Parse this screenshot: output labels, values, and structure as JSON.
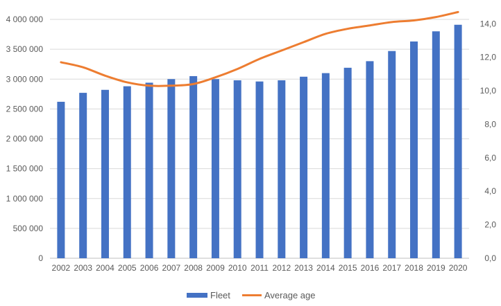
{
  "chart_data": {
    "type": "bar+line",
    "title": "",
    "categories": [
      "2002",
      "2003",
      "2004",
      "2005",
      "2006",
      "2007",
      "2008",
      "2009",
      "2010",
      "2011",
      "2012",
      "2013",
      "2014",
      "2015",
      "2016",
      "2017",
      "2018",
      "2019",
      "2020"
    ],
    "series": [
      {
        "name": "Fleet",
        "type": "bar",
        "axis": "left",
        "color": "#4472C4",
        "values": [
          2620000,
          2770000,
          2820000,
          2880000,
          2940000,
          3000000,
          3050000,
          3000000,
          2980000,
          2960000,
          2980000,
          3040000,
          3100000,
          3190000,
          3300000,
          3470000,
          3630000,
          3800000,
          3910000
        ]
      },
      {
        "name": "Average age",
        "type": "line",
        "axis": "right",
        "color": "#ED7D31",
        "values": [
          11.7,
          11.4,
          10.9,
          10.5,
          10.3,
          10.3,
          10.4,
          10.8,
          11.3,
          11.9,
          12.4,
          12.9,
          13.4,
          13.7,
          13.9,
          14.1,
          14.2,
          14.4,
          14.7
        ]
      }
    ],
    "left_axis": {
      "ylim": [
        0,
        4000000
      ],
      "ticks": [
        0,
        500000,
        1000000,
        1500000,
        2000000,
        2500000,
        3000000,
        3500000,
        4000000
      ],
      "tick_labels": [
        "0",
        "500 000",
        "1 000 000",
        "1 500 000",
        "2 000 000",
        "2 500 000",
        "3 000 000",
        "3 500 000",
        "4 000 000"
      ]
    },
    "right_axis": {
      "ylim": [
        0,
        14.26
      ],
      "ticks": [
        0,
        2,
        4,
        6,
        8,
        10,
        12,
        14
      ],
      "tick_labels": [
        "0,0",
        "2,0",
        "4,0",
        "6,0",
        "8,0",
        "10,0",
        "12,0",
        "14,0"
      ]
    },
    "grid": true,
    "legend": {
      "placement": "bottom",
      "entries": [
        "Fleet",
        "Average age"
      ]
    }
  }
}
